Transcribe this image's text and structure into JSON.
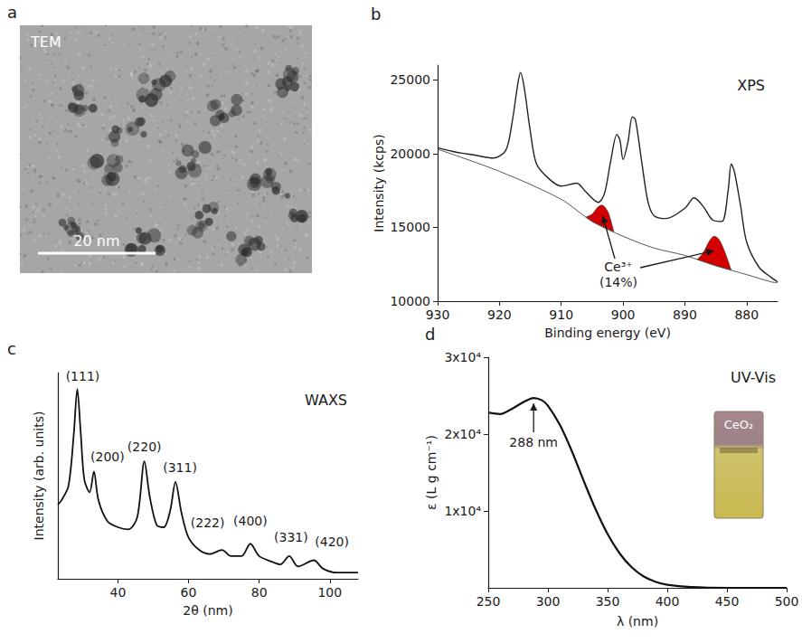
{
  "image_panel": {
    "panel": "a",
    "label": "TEM",
    "scale_bar": "20 nm"
  },
  "chart_data": [
    {
      "panel": "b",
      "type": "line",
      "title": "XPS",
      "x_label": "Binding energy (eV)",
      "y_label": "Intensity (kcps)",
      "xlim": [
        930,
        875
      ],
      "xticks": [
        930,
        920,
        910,
        900,
        890,
        880
      ],
      "ylim": [
        10000,
        26000
      ],
      "yticks": [
        10000,
        15000,
        20000,
        25000
      ],
      "grid": false,
      "color": "#222222",
      "x": [
        930,
        927,
        924,
        921,
        919,
        918,
        917,
        916.6,
        916,
        915,
        914,
        912,
        910,
        907.5,
        906,
        904,
        903,
        902,
        901,
        900.5,
        900,
        899.2,
        898.5,
        898,
        897,
        896,
        895,
        893,
        890,
        888.5,
        887,
        885.5,
        884,
        883,
        882.5,
        882,
        881,
        880,
        878,
        876,
        875
      ],
      "values": [
        20400,
        20100,
        19900,
        19700,
        20200,
        22000,
        24800,
        25500,
        24500,
        21500,
        19300,
        18300,
        17800,
        18000,
        17400,
        16700,
        17300,
        19500,
        21300,
        20900,
        19600,
        20800,
        22500,
        22300,
        19500,
        16800,
        15800,
        15600,
        16300,
        17000,
        16400,
        15500,
        15400,
        17500,
        19300,
        18800,
        16500,
        14000,
        12300,
        11600,
        11300
      ],
      "background": {
        "color": "#555555",
        "x": [
          930,
          920,
          910,
          905,
          900,
          895,
          890,
          885,
          880,
          876,
          875
        ],
        "values": [
          20300,
          18800,
          16900,
          15400,
          14400,
          13600,
          13100,
          12400,
          11800,
          11300,
          11250
        ]
      },
      "peaks": {
        "color": "#d40000",
        "regions": [
          {
            "x": [
              906,
              905,
              904,
              903.3,
              902.5,
              902,
              901.5
            ],
            "upper": [
              15700,
              15900,
              16400,
              16500,
              16100,
              15500,
              14700
            ],
            "lower": [
              15700,
              15400,
              15200,
              15060,
              14900,
              14800,
              14700
            ]
          },
          {
            "x": [
              888,
              887,
              886,
              885.3,
              884.5,
              883.5,
              882.5
            ],
            "upper": [
              12820,
              13300,
              14100,
              14400,
              14200,
              13300,
              12100
            ],
            "lower": [
              12820,
              12680,
              12540,
              12442,
              12340,
              12220,
              12100
            ]
          }
        ]
      },
      "annotation": {
        "text": "Ce³⁺",
        "subtext": "(14%)"
      }
    },
    {
      "panel": "c",
      "type": "line",
      "title": "WAXS",
      "x_label": "2θ (nm)",
      "y_label": "Intensity (arb. units)",
      "xlim": [
        23,
        108
      ],
      "xticks": [
        40,
        60,
        80,
        100
      ],
      "ylim": [
        0,
        100
      ],
      "tick_labels": "x",
      "grid": false,
      "color": "#111111",
      "x": [
        23,
        24,
        26,
        27.5,
        28.5,
        29.5,
        30.5,
        32,
        33.2,
        34.5,
        37,
        40,
        43,
        45.5,
        47.5,
        49,
        51,
        53,
        54.8,
        56.3,
        58,
        60,
        63,
        66,
        69.5,
        72,
        75,
        77.5,
        80,
        84,
        86,
        88.5,
        91,
        95.5,
        98,
        102,
        104,
        106,
        108
      ],
      "values": [
        36,
        38,
        45,
        70,
        92,
        70,
        48,
        42,
        52,
        38,
        28,
        25,
        24,
        30,
        57,
        40,
        26,
        25,
        33,
        47,
        32,
        20,
        14,
        12,
        14,
        11,
        11,
        17,
        11,
        8,
        7,
        11,
        6,
        9,
        5,
        3,
        3,
        3,
        3
      ],
      "peak_labels": [
        {
          "text": "(111)",
          "x": 28.5
        },
        {
          "text": "(200)",
          "x": 33.2
        },
        {
          "text": "(220)",
          "x": 47.5
        },
        {
          "text": "(311)",
          "x": 56.3
        },
        {
          "text": "(222)",
          "x": 69.5
        },
        {
          "text": "(400)",
          "x": 77.5
        },
        {
          "text": "(331)",
          "x": 88.5
        },
        {
          "text": "(420)",
          "x": 95.5
        }
      ]
    },
    {
      "panel": "d",
      "type": "line",
      "title": "UV-Vis",
      "x_label": "λ (nm)",
      "y_label": "ε (L g cm⁻¹)",
      "xlim": [
        250,
        500
      ],
      "xticks": [
        250,
        300,
        350,
        400,
        450,
        500
      ],
      "ylim": [
        0,
        30000
      ],
      "yticks": [
        {
          "value": 10000,
          "label": "1x10⁴"
        },
        {
          "value": 20000,
          "label": "2x10⁴"
        },
        {
          "value": 30000,
          "label": "3x10⁴"
        }
      ],
      "grid": false,
      "color": "#111111",
      "x": [
        250,
        260,
        270,
        280,
        288,
        295,
        300,
        310,
        320,
        330,
        340,
        350,
        360,
        370,
        380,
        390,
        400,
        420,
        450,
        500
      ],
      "values": [
        22800,
        22600,
        23300,
        24200,
        24700,
        24400,
        23700,
        21200,
        17800,
        13900,
        10200,
        7000,
        4500,
        2700,
        1500,
        800,
        400,
        100,
        0,
        0
      ],
      "annotation": {
        "text": "288 nm",
        "x": 288
      },
      "inset_label": "CeO₂"
    }
  ]
}
